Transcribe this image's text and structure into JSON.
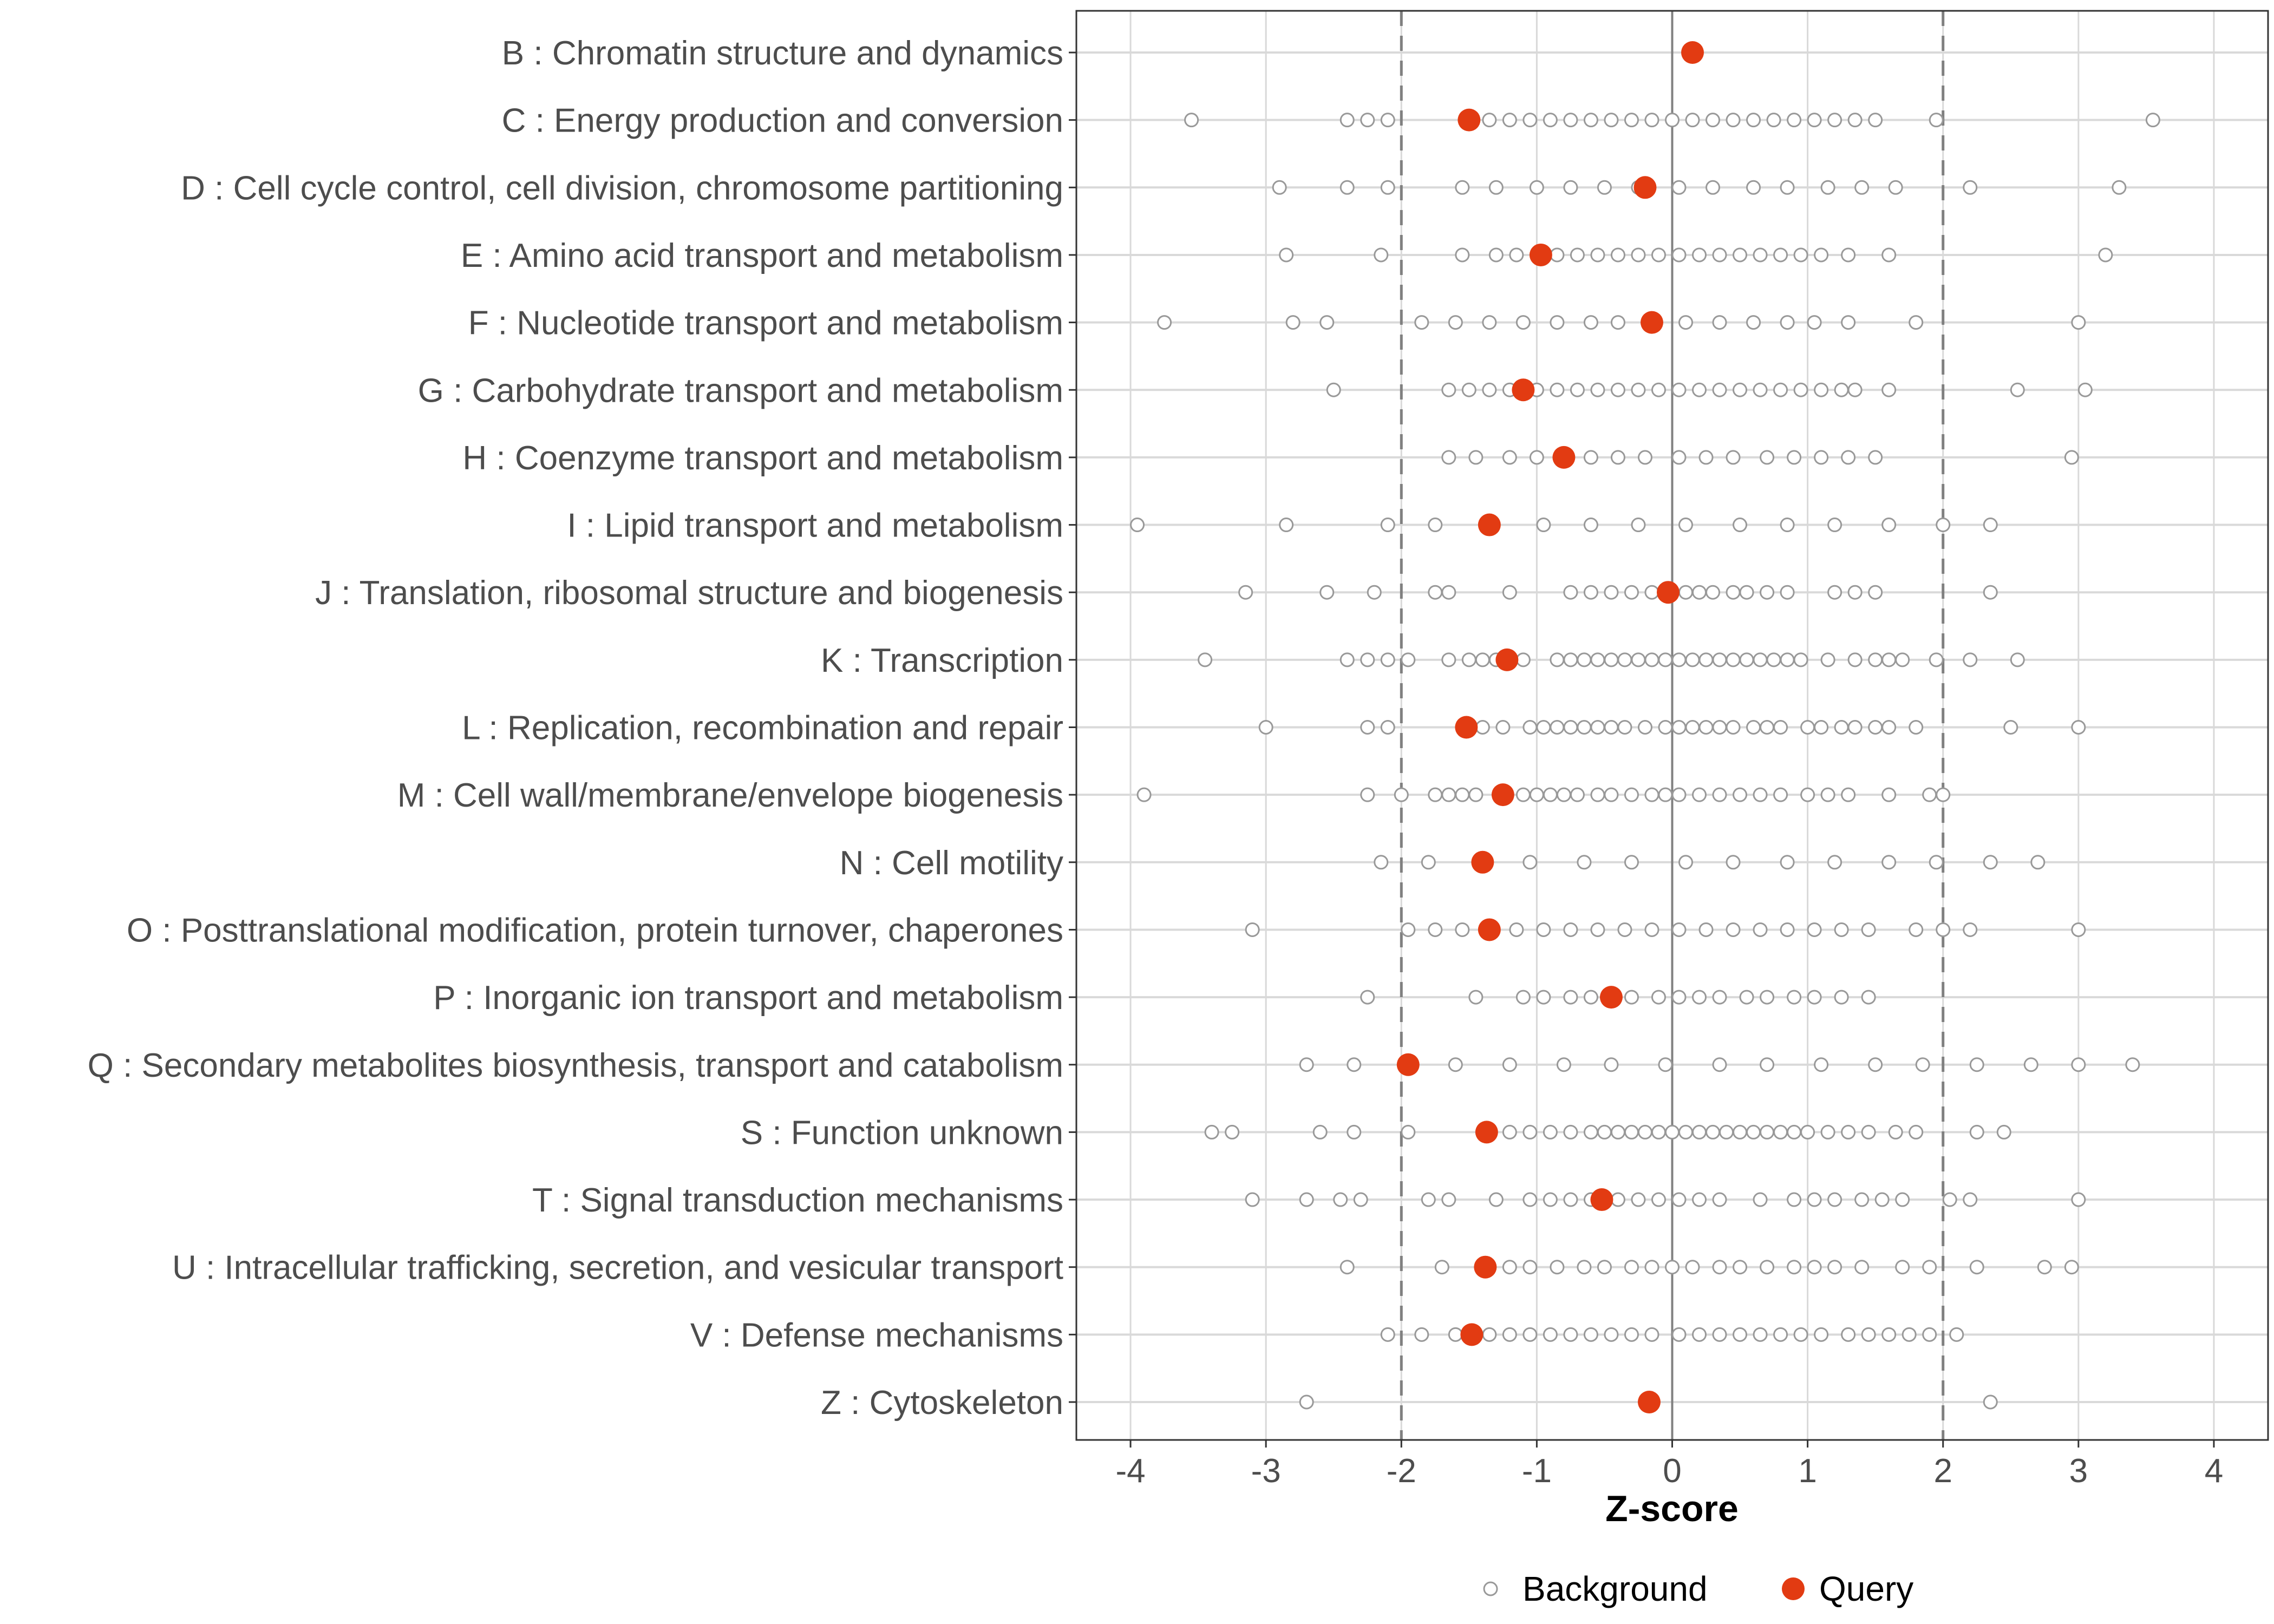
{
  "chart_data": {
    "type": "scatter",
    "title": "",
    "xlabel": "Z-score",
    "ylabel": "",
    "xlim": [
      -4.4,
      4.4
    ],
    "xticks": [
      -4,
      -3,
      -2,
      -1,
      0,
      1,
      2,
      3,
      4
    ],
    "tick_labels": [
      "-4",
      "-3",
      "-2",
      "-1",
      "0",
      "1",
      "2",
      "3",
      "4"
    ],
    "reference_lines": {
      "solid": [
        0
      ],
      "dashed": [
        -2,
        2
      ]
    },
    "grid": true,
    "legend_position": "bottom",
    "legend": [
      {
        "name": "Background",
        "marker": "open-circle",
        "color": "#999999"
      },
      {
        "name": "Query",
        "marker": "filled-circle",
        "color": "#e23b12"
      }
    ],
    "categories": [
      "B : Chromatin structure and dynamics",
      "C : Energy production and conversion",
      "D : Cell cycle control, cell division, chromosome partitioning",
      "E : Amino acid transport and metabolism",
      "F : Nucleotide transport and metabolism",
      "G : Carbohydrate transport and metabolism",
      "H : Coenzyme transport and metabolism",
      "I : Lipid transport and metabolism",
      "J : Translation, ribosomal structure and biogenesis",
      "K : Transcription",
      "L : Replication, recombination and repair",
      "M : Cell wall/membrane/envelope biogenesis",
      "N : Cell motility",
      "O : Posttranslational modification, protein turnover, chaperones",
      "P : Inorganic ion transport and metabolism",
      "Q : Secondary metabolites biosynthesis, transport and catabolism",
      "S : Function unknown",
      "T : Signal transduction mechanisms",
      "U : Intracellular trafficking, secretion, and vesicular transport",
      "V : Defense mechanisms",
      "Z : Cytoskeleton"
    ],
    "series": [
      {
        "name": "Background",
        "values": [
          [],
          [
            -3.55,
            -2.4,
            -2.25,
            -2.1,
            -1.5,
            -1.35,
            -1.2,
            -1.05,
            -0.9,
            -0.75,
            -0.6,
            -0.45,
            -0.3,
            -0.15,
            0.0,
            0.15,
            0.3,
            0.45,
            0.6,
            0.75,
            0.9,
            1.05,
            1.2,
            1.35,
            1.5,
            1.95,
            3.55
          ],
          [
            -2.9,
            -2.4,
            -2.1,
            -1.55,
            -1.3,
            -1.0,
            -0.75,
            -0.5,
            -0.25,
            0.05,
            0.3,
            0.6,
            0.85,
            1.15,
            1.4,
            1.65,
            2.2,
            3.3
          ],
          [
            -2.85,
            -2.15,
            -1.55,
            -1.3,
            -1.15,
            -0.85,
            -0.7,
            -0.55,
            -0.4,
            -0.25,
            -0.1,
            0.05,
            0.2,
            0.35,
            0.5,
            0.65,
            0.8,
            0.95,
            1.1,
            1.3,
            1.6,
            3.2
          ],
          [
            -3.75,
            -2.8,
            -2.55,
            -1.85,
            -1.6,
            -1.35,
            -1.1,
            -0.85,
            -0.6,
            -0.4,
            -0.15,
            0.1,
            0.35,
            0.6,
            0.85,
            1.05,
            1.3,
            1.8,
            3.0
          ],
          [
            -2.5,
            -1.65,
            -1.5,
            -1.35,
            -1.2,
            -1.0,
            -0.85,
            -0.7,
            -0.55,
            -0.4,
            -0.25,
            -0.1,
            0.05,
            0.2,
            0.35,
            0.5,
            0.65,
            0.8,
            0.95,
            1.1,
            1.25,
            1.35,
            1.6,
            2.55,
            3.05
          ],
          [
            -1.65,
            -1.45,
            -1.2,
            -1.0,
            -0.6,
            -0.4,
            -0.2,
            0.05,
            0.25,
            0.45,
            0.7,
            0.9,
            1.1,
            1.3,
            1.5,
            2.95
          ],
          [
            -3.95,
            -2.85,
            -2.1,
            -1.75,
            -1.35,
            -0.95,
            -0.6,
            -0.25,
            0.1,
            0.5,
            0.85,
            1.2,
            1.6,
            2.0,
            2.35
          ],
          [
            -3.15,
            -2.55,
            -2.2,
            -1.75,
            -1.65,
            -1.2,
            -0.75,
            -0.6,
            -0.45,
            -0.3,
            -0.15,
            0.1,
            0.2,
            0.3,
            0.45,
            0.55,
            0.7,
            0.85,
            1.2,
            1.35,
            1.5,
            2.35
          ],
          [
            -3.45,
            -2.4,
            -2.25,
            -2.1,
            -1.95,
            -1.65,
            -1.5,
            -1.4,
            -1.3,
            -1.1,
            -0.85,
            -0.75,
            -0.65,
            -0.55,
            -0.45,
            -0.35,
            -0.25,
            -0.15,
            -0.05,
            0.05,
            0.15,
            0.25,
            0.35,
            0.45,
            0.55,
            0.65,
            0.75,
            0.85,
            0.95,
            1.15,
            1.35,
            1.5,
            1.6,
            1.7,
            1.95,
            2.2,
            2.55
          ],
          [
            -3.0,
            -2.25,
            -2.1,
            -1.4,
            -1.25,
            -1.05,
            -0.95,
            -0.85,
            -0.75,
            -0.65,
            -0.55,
            -0.45,
            -0.35,
            -0.2,
            -0.05,
            0.05,
            0.15,
            0.25,
            0.35,
            0.45,
            0.6,
            0.7,
            0.8,
            1.0,
            1.1,
            1.25,
            1.35,
            1.5,
            1.6,
            1.8,
            2.5,
            3.0
          ],
          [
            -3.9,
            -2.25,
            -2.0,
            -1.75,
            -1.65,
            -1.55,
            -1.45,
            -1.1,
            -1.0,
            -0.9,
            -0.8,
            -0.7,
            -0.55,
            -0.45,
            -0.3,
            -0.15,
            -0.05,
            0.05,
            0.2,
            0.35,
            0.5,
            0.65,
            0.8,
            1.0,
            1.15,
            1.3,
            1.6,
            1.9,
            2.0
          ],
          [
            -2.15,
            -1.8,
            -1.05,
            -0.65,
            -0.3,
            0.1,
            0.45,
            0.85,
            1.2,
            1.6,
            1.95,
            2.35,
            2.7
          ],
          [
            -3.1,
            -1.95,
            -1.75,
            -1.55,
            -1.15,
            -0.95,
            -0.75,
            -0.55,
            -0.35,
            -0.15,
            0.05,
            0.25,
            0.45,
            0.65,
            0.85,
            1.05,
            1.25,
            1.45,
            1.8,
            2.0,
            2.2,
            3.0
          ],
          [
            -2.25,
            -1.45,
            -1.1,
            -0.95,
            -0.75,
            -0.6,
            -0.3,
            -0.1,
            0.05,
            0.2,
            0.35,
            0.55,
            0.7,
            0.9,
            1.05,
            1.25,
            1.45
          ],
          [
            -2.7,
            -2.35,
            -1.6,
            -1.2,
            -0.8,
            -0.45,
            -0.05,
            0.35,
            0.7,
            1.1,
            1.5,
            1.85,
            2.25,
            2.65,
            3.0,
            3.4
          ],
          [
            -3.4,
            -3.25,
            -2.6,
            -2.35,
            -1.95,
            -1.4,
            -1.2,
            -1.05,
            -0.9,
            -0.75,
            -0.6,
            -0.5,
            -0.4,
            -0.3,
            -0.2,
            -0.1,
            0.0,
            0.1,
            0.2,
            0.3,
            0.4,
            0.5,
            0.6,
            0.7,
            0.8,
            0.9,
            1.0,
            1.15,
            1.3,
            1.45,
            1.65,
            1.8,
            2.25,
            2.45
          ],
          [
            -3.1,
            -2.7,
            -2.45,
            -2.3,
            -1.8,
            -1.65,
            -1.3,
            -1.05,
            -0.9,
            -0.75,
            -0.6,
            -0.4,
            -0.25,
            -0.1,
            0.05,
            0.2,
            0.35,
            0.65,
            0.9,
            1.05,
            1.2,
            1.4,
            1.55,
            1.7,
            2.05,
            2.2,
            3.0
          ],
          [
            -2.4,
            -1.7,
            -1.2,
            -1.05,
            -0.85,
            -0.65,
            -0.5,
            -0.3,
            -0.15,
            0.0,
            0.15,
            0.35,
            0.5,
            0.7,
            0.9,
            1.05,
            1.2,
            1.4,
            1.7,
            1.9,
            2.25,
            2.75,
            2.95
          ],
          [
            -2.1,
            -1.85,
            -1.6,
            -1.35,
            -1.2,
            -1.05,
            -0.9,
            -0.75,
            -0.6,
            -0.45,
            -0.3,
            -0.15,
            0.05,
            0.2,
            0.35,
            0.5,
            0.65,
            0.8,
            0.95,
            1.1,
            1.3,
            1.45,
            1.6,
            1.75,
            1.9,
            2.1
          ],
          [
            -2.7,
            2.35
          ]
        ]
      },
      {
        "name": "Query",
        "values": [
          0.15,
          -1.5,
          -0.2,
          -0.97,
          -0.15,
          -1.1,
          -0.8,
          -1.35,
          -0.03,
          -1.22,
          -1.52,
          -1.25,
          -1.4,
          -1.35,
          -0.45,
          -1.95,
          -1.37,
          -0.52,
          -1.38,
          -1.48,
          -0.17
        ]
      }
    ]
  }
}
